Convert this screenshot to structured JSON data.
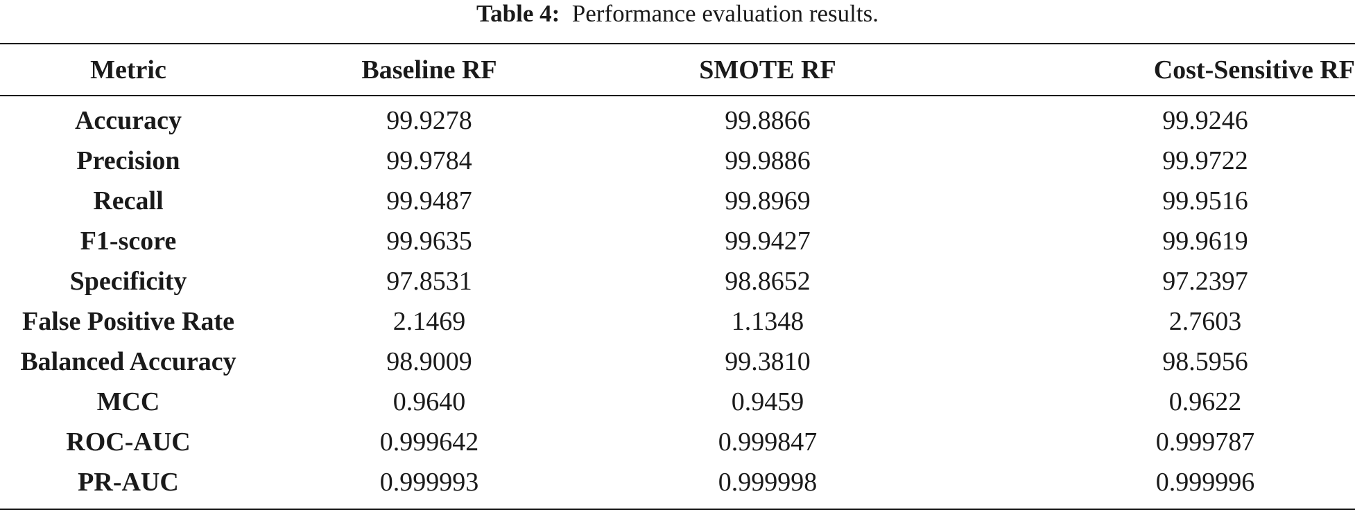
{
  "caption": {
    "label": "Table 4:",
    "text": "Performance evaluation results."
  },
  "table": {
    "columns": [
      "Metric",
      "Baseline RF",
      "SMOTE RF",
      "Cost-Sensitive RF"
    ],
    "rows": [
      {
        "metric": "Accuracy",
        "values": [
          "99.9278",
          "99.8866",
          "99.9246"
        ]
      },
      {
        "metric": "Precision",
        "values": [
          "99.9784",
          "99.9886",
          "99.9722"
        ]
      },
      {
        "metric": "Recall",
        "values": [
          "99.9487",
          "99.8969",
          "99.9516"
        ]
      },
      {
        "metric": "F1-score",
        "values": [
          "99.9635",
          "99.9427",
          "99.9619"
        ]
      },
      {
        "metric": "Specificity",
        "values": [
          "97.8531",
          "98.8652",
          "97.2397"
        ]
      },
      {
        "metric": "False Positive Rate",
        "values": [
          "2.1469",
          "1.1348",
          "2.7603"
        ]
      },
      {
        "metric": "Balanced Accuracy",
        "values": [
          "98.9009",
          "99.3810",
          "98.5956"
        ]
      },
      {
        "metric": "MCC",
        "values": [
          "0.9640",
          "0.9459",
          "0.9622"
        ]
      },
      {
        "metric": "ROC-AUC",
        "values": [
          "0.999642",
          "0.999847",
          "0.999787"
        ]
      },
      {
        "metric": "PR-AUC",
        "values": [
          "0.999993",
          "0.999998",
          "0.999996"
        ]
      }
    ]
  }
}
